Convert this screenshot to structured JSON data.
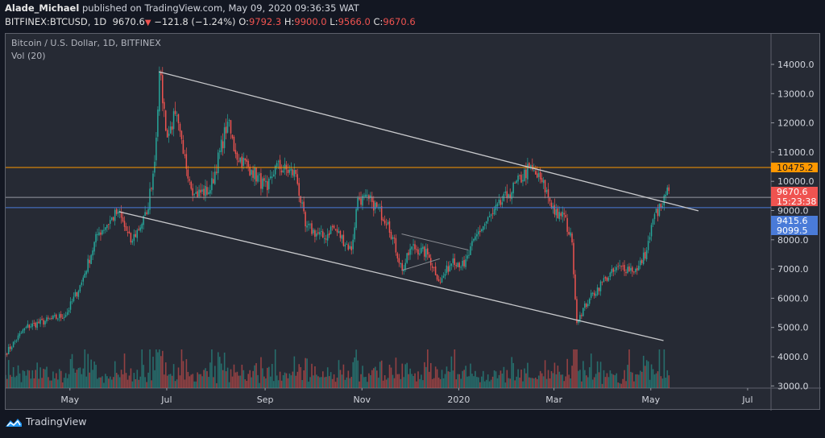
{
  "header": {
    "author": "Alade_Michael",
    "published": "published on TradingView.com, May 09, 2020 09:36:35 WAT",
    "symbol": "BITFINEX:BTCUSD, 1D",
    "last": "9670.6",
    "change": "−121.8 (−1.24%)",
    "o_label": "O:",
    "o": "9792.3",
    "h_label": "H:",
    "h": "9900.0",
    "l_label": "L:",
    "l": "9566.0",
    "c_label": "C:",
    "c": "9670.6",
    "down_icon": "triangle-down-icon"
  },
  "legend": {
    "title": "Bitcoin / U.S. Dollar, 1D, BITFINEX",
    "vol": "Vol (20)"
  },
  "footer": {
    "brand": "TradingView"
  },
  "colors": {
    "up": "#26a69a",
    "down": "#ef5350",
    "orange": "#ff9800",
    "blue": "#4a7bd8",
    "gray": "#9598a1",
    "bg": "#262a34"
  },
  "chart_data": {
    "type": "candlestick",
    "title": "Bitcoin / U.S. Dollar, 1D, BITFINEX",
    "start_date": "2019-03-21",
    "ylim": [
      2950,
      14900
    ],
    "y_ticks": [
      "14000.0",
      "13000.0",
      "12000.0",
      "11000.0",
      "10000.0",
      "9000.0",
      "8000.0",
      "7000.0",
      "6000.0",
      "5000.0",
      "4000.0",
      "3000.0"
    ],
    "x_ticks": [
      {
        "label": "May",
        "day": 41
      },
      {
        "label": "Jul",
        "day": 102
      },
      {
        "label": "Sep",
        "day": 164
      },
      {
        "label": "Nov",
        "day": 225
      },
      {
        "label": "2020",
        "day": 286
      },
      {
        "label": "Mar",
        "day": 346
      },
      {
        "label": "May",
        "day": 407
      },
      {
        "label": "Jul",
        "day": 468
      }
    ],
    "close_path": [
      [
        0,
        4100
      ],
      [
        13,
        5020
      ],
      [
        38,
        5430
      ],
      [
        48,
        6540
      ],
      [
        58,
        8190
      ],
      [
        71,
        8960
      ],
      [
        79,
        7910
      ],
      [
        89,
        8880
      ],
      [
        94,
        10670
      ],
      [
        97,
        13750
      ],
      [
        102,
        11500
      ],
      [
        107,
        12300
      ],
      [
        112,
        10940
      ],
      [
        119,
        9560
      ],
      [
        129,
        9700
      ],
      [
        140,
        12040
      ],
      [
        145,
        10940
      ],
      [
        155,
        10390
      ],
      [
        165,
        9700
      ],
      [
        170,
        10530
      ],
      [
        183,
        10250
      ],
      [
        189,
        8460
      ],
      [
        201,
        8050
      ],
      [
        206,
        8460
      ],
      [
        218,
        7640
      ],
      [
        222,
        9430
      ],
      [
        231,
        9290
      ],
      [
        241,
        8600
      ],
      [
        250,
        6950
      ],
      [
        256,
        7770
      ],
      [
        266,
        7500
      ],
      [
        274,
        6540
      ],
      [
        282,
        7360
      ],
      [
        289,
        7090
      ],
      [
        297,
        8190
      ],
      [
        307,
        8880
      ],
      [
        317,
        9560
      ],
      [
        330,
        10450
      ],
      [
        338,
        9980
      ],
      [
        348,
        8740
      ],
      [
        351,
        8960
      ],
      [
        357,
        7910
      ],
      [
        360,
        5160
      ],
      [
        362,
        5430
      ],
      [
        368,
        5980
      ],
      [
        378,
        6680
      ],
      [
        388,
        7090
      ],
      [
        398,
        6950
      ],
      [
        404,
        7640
      ],
      [
        409,
        8880
      ],
      [
        414,
        9150
      ],
      [
        417,
        9790
      ],
      [
        418,
        9670.6
      ]
    ],
    "last_candle": {
      "open": 9792.3,
      "high": 9900.0,
      "low": 9566.0,
      "close": 9670.6
    },
    "horizontal_levels": [
      {
        "price": 10475.2,
        "label": "10475.2",
        "color": "#ff9800"
      },
      {
        "price": 9450,
        "color": "#9598a1"
      },
      {
        "price": 9099.5,
        "label": "9099.5",
        "color": "#4a7bd8"
      }
    ],
    "price_labels": [
      {
        "text": "9670.6",
        "price": 9670.6,
        "color": "#ef5350"
      },
      {
        "text": "15:23:38",
        "color": "#ef5350"
      },
      {
        "text": "9415.6",
        "color": "#4a7bd8"
      }
    ],
    "trendlines": [
      {
        "from": [
          97,
          13750
        ],
        "to": [
          437,
          8990
        ]
      },
      {
        "from": [
          72,
          8960
        ],
        "to": [
          415,
          4550
        ]
      },
      {
        "from": [
          250,
          8200
        ],
        "to": [
          292,
          7650
        ]
      },
      {
        "from": [
          250,
          6950
        ],
        "to": [
          274,
          7350
        ]
      }
    ]
  }
}
